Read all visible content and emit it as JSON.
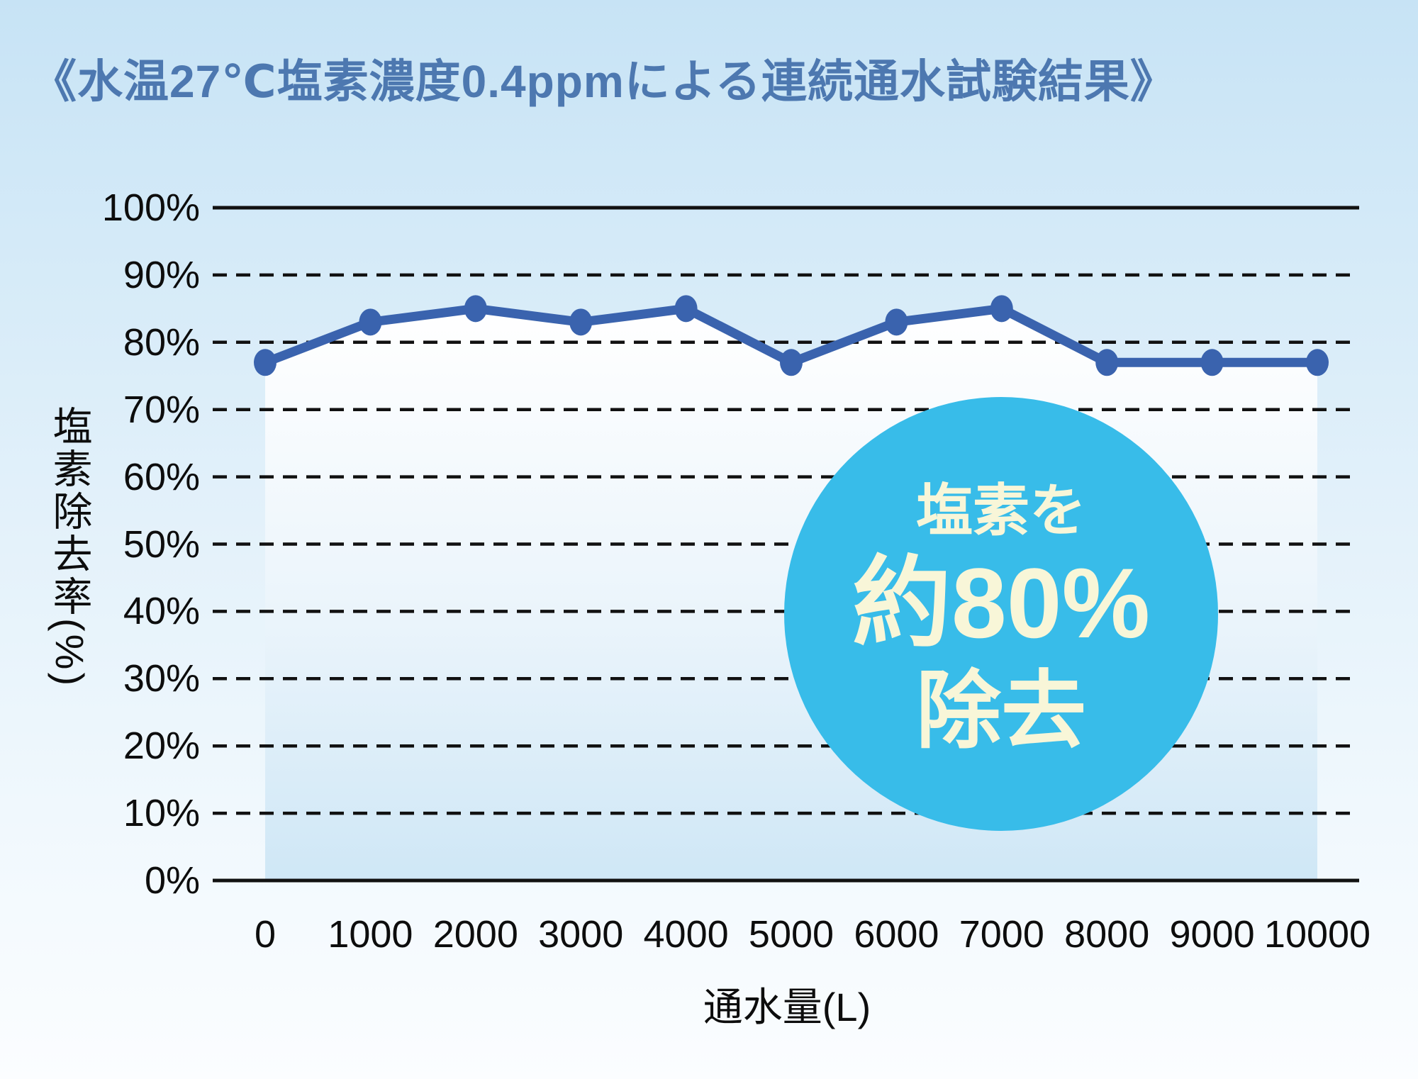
{
  "page": {
    "title": "《水温27℃塩素濃度0.4ppmによる連続通水試験結果》"
  },
  "chart_data": {
    "type": "line",
    "title": "《水温27℃塩素濃度0.4ppmによる連続通水試験結果》",
    "xlabel": "通水量(L)",
    "ylabel": "塩素除去率(%)",
    "x": [
      0,
      1000,
      2000,
      3000,
      4000,
      5000,
      6000,
      7000,
      8000,
      9000,
      10000
    ],
    "values": [
      77,
      83,
      85,
      83,
      85,
      77,
      83,
      85,
      77,
      77,
      77
    ],
    "series_name": "塩素除去率",
    "xlim": [
      0,
      10000
    ],
    "ylim": [
      0,
      100
    ],
    "y_ticks": [
      "100%",
      "90%",
      "80%",
      "70%",
      "60%",
      "50%",
      "40%",
      "30%",
      "20%",
      "10%",
      "0%"
    ],
    "x_ticks": [
      "0",
      "1000",
      "2000",
      "3000",
      "4000",
      "5000",
      "6000",
      "7000",
      "8000",
      "9000",
      "10000"
    ],
    "grid": "horizontal dashed lines every 10%, solid lines at 100% and 0%",
    "legend": "none",
    "line_color": "#3a63ae",
    "area_fill": "white-to-lightblue vertical gradient under the line",
    "annotation_badge": {
      "lines": [
        "塩素を",
        "約80%",
        "除去"
      ],
      "circle_color": "#38bce9",
      "text_color": "#f8f6d8"
    }
  },
  "badge": {
    "line1": "塩素を",
    "line2": "約80%",
    "line3": "除去"
  },
  "colors": {
    "background_top": "#c7e3f5",
    "background_bottom": "#fbfdff",
    "title_text": "#4d78b0",
    "line": "#3a63ae",
    "grid": "#111111",
    "badge_circle": "#38bce9",
    "badge_text": "#f8f6d8"
  }
}
